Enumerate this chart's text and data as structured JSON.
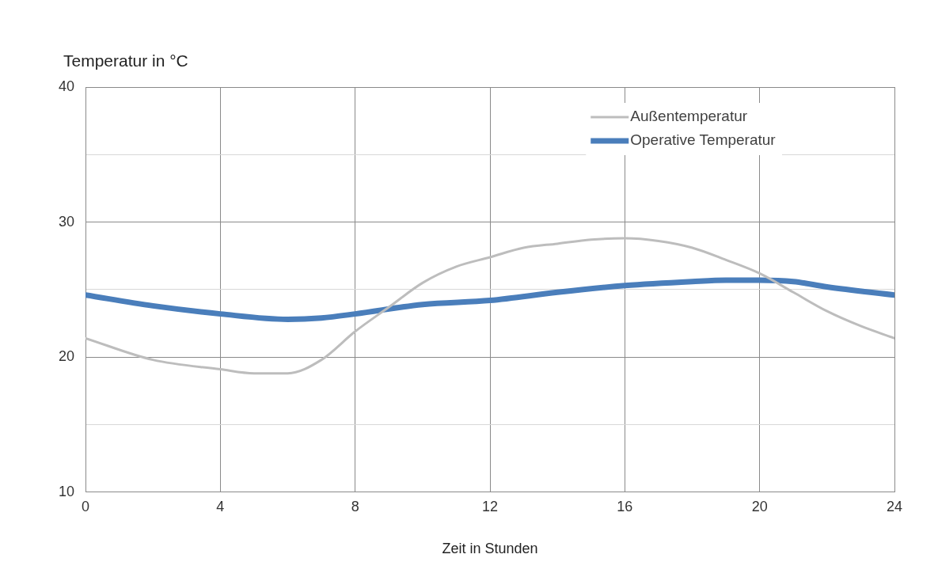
{
  "chart_data": {
    "type": "line",
    "ylabel": "Temperatur in °C",
    "xlabel": "Zeit in Stunden",
    "xlim": [
      0,
      24
    ],
    "xticks": [
      0,
      4,
      8,
      12,
      16,
      20,
      24
    ],
    "ylim": [
      10,
      40
    ],
    "yticks": [
      10,
      {
        "value": 15,
        "label": null
      },
      20,
      {
        "value": 25,
        "label": null
      },
      30,
      {
        "value": 35,
        "label": null
      },
      40
    ],
    "grid": true,
    "legend": "top right",
    "marker": "none",
    "line_style": "solid",
    "series": [
      {
        "name": "Außentemperatur",
        "color": "#bdbdbd",
        "x": [
          0,
          2,
          4,
          5,
          6,
          7,
          8,
          9,
          10,
          11,
          12,
          13,
          14,
          15,
          16,
          17,
          18,
          19,
          20,
          21,
          22,
          23,
          24
        ],
        "values": [
          21.4,
          19.8,
          19.1,
          18.8,
          18.8,
          19.8,
          21.9,
          23.7,
          25.5,
          26.7,
          27.4,
          28.1,
          28.4,
          28.7,
          28.8,
          28.6,
          28.1,
          27.2,
          26.2,
          24.8,
          23.4,
          22.3,
          21.4
        ]
      },
      {
        "name": "Operative Temperatur",
        "color": "#4a7ebb",
        "x": [
          0,
          2,
          4,
          6,
          7,
          8,
          10,
          12,
          14,
          16,
          18,
          19,
          20,
          21,
          22,
          24
        ],
        "values": [
          24.6,
          23.8,
          23.2,
          22.8,
          22.9,
          23.2,
          23.9,
          24.2,
          24.8,
          25.3,
          25.6,
          25.7,
          25.7,
          25.6,
          25.2,
          24.6
        ]
      }
    ]
  }
}
